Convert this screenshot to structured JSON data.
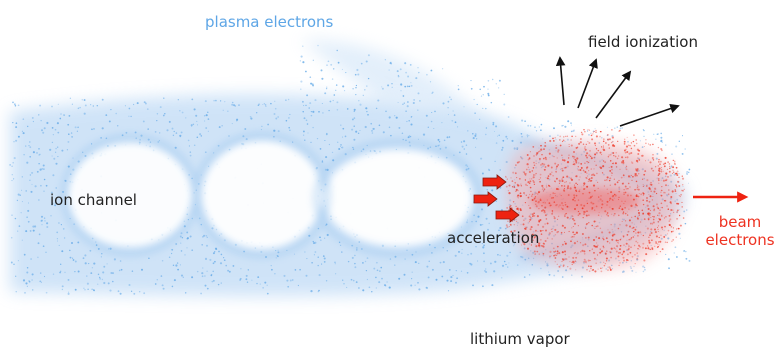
{
  "labels": {
    "plasma_electrons": "plasma electrons",
    "field_ionization": "field ionization",
    "ion_channel": "ion channel",
    "acceleration": "acceleration",
    "lithium_vapor": "lithium vapor",
    "beam_line1": "beam",
    "beam_line2": "electrons"
  },
  "colors": {
    "plasma": "#5ea6e6",
    "beam": "#ee3322",
    "text": "#222222",
    "arrow_dark": "#111111",
    "arrow_red": "#ee2211"
  },
  "icons": {
    "field_arrows": "arrow-up-right-icon",
    "acceleration_arrows": "red-block-arrow-icon",
    "beam_direction": "arrow-right-icon"
  }
}
